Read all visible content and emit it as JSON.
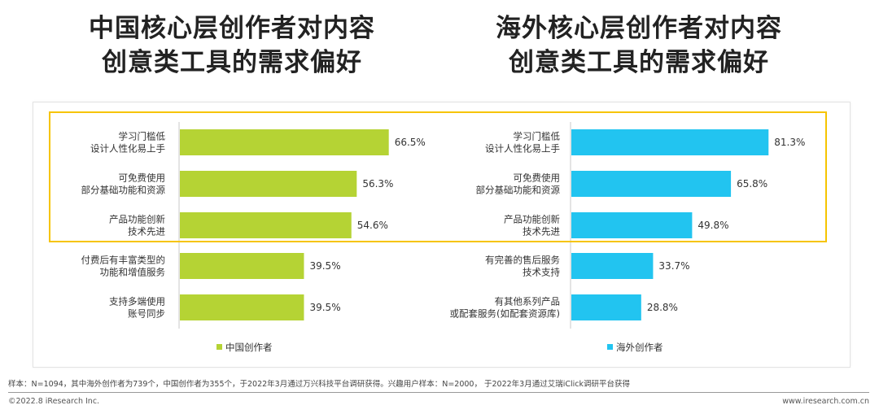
{
  "titles": {
    "left_line1": "中国核心层创作者对内容",
    "left_line2": "创意类工具的需求偏好",
    "right_line1": "海外核心层创作者对内容",
    "right_line2": "创意类工具的需求偏好"
  },
  "chart_data": [
    {
      "type": "bar",
      "orientation": "horizontal",
      "categories": [
        [
          "学习门槛低",
          "设计人性化易上手"
        ],
        [
          "可免费使用",
          "部分基础功能和资源"
        ],
        [
          "产品功能创新",
          "技术先进"
        ],
        [
          "付费后有丰富类型的",
          "功能和增值服务"
        ],
        [
          "支持多端使用",
          "账号同步"
        ]
      ],
      "series": [
        {
          "name": "中国创作者",
          "values": [
            66.5,
            56.3,
            54.6,
            39.5,
            39.5
          ],
          "color": "#b5d334"
        }
      ],
      "value_labels": [
        "66.5%",
        "56.3%",
        "54.6%",
        "39.5%",
        "39.5%"
      ],
      "xlim": [
        0,
        100
      ],
      "legend": "bottom"
    },
    {
      "type": "bar",
      "orientation": "horizontal",
      "categories": [
        [
          "学习门槛低",
          "设计人性化易上手"
        ],
        [
          "可免费使用",
          "部分基础功能和资源"
        ],
        [
          "产品功能创新",
          "技术先进"
        ],
        [
          "有完善的售后服务",
          "技术支持"
        ],
        [
          "有其他系列产品",
          "或配套服务(如配套资源库)"
        ]
      ],
      "series": [
        {
          "name": "海外创作者",
          "values": [
            81.3,
            65.8,
            49.8,
            33.7,
            28.8
          ],
          "color": "#22c4f0"
        }
      ],
      "value_labels": [
        "81.3%",
        "65.8%",
        "49.8%",
        "33.7%",
        "28.8%"
      ],
      "xlim": [
        0,
        100
      ],
      "legend": "bottom"
    }
  ],
  "note": "样本：N=1094，其中海外创作者为739个，中国创作者为355个，于2022年3月通过万兴科技平台调研获得。兴趣用户样本：N=2000， 于2022年3月通过艾瑞iClick调研平台获得",
  "footer": {
    "copyright": "©2022.8 iResearch Inc.",
    "website": "www.iresearch.com.cn"
  }
}
